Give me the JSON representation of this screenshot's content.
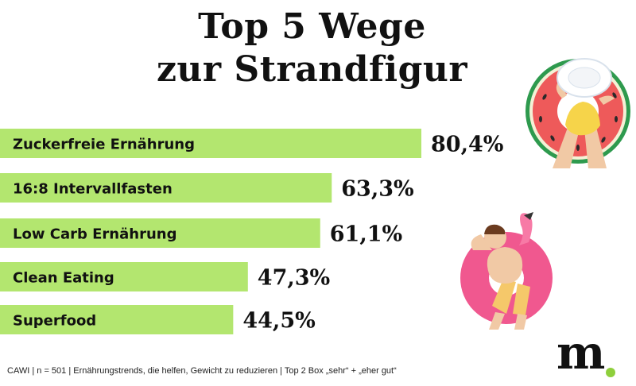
{
  "title_line1": "Top 5 Wege",
  "title_line2": "zur Strandfigur",
  "chart_data": {
    "type": "bar",
    "orientation": "horizontal",
    "categories": [
      "Zuckerfreie Ernährung",
      "16:8 Intervallfasten",
      "Low Carb Ernährung",
      "Clean Eating",
      "Superfood"
    ],
    "values": [
      80.4,
      63.3,
      61.1,
      47.3,
      44.5
    ],
    "value_labels": [
      "80,4%",
      "63,3%",
      "61,1%",
      "47,3%",
      "44,5%"
    ],
    "unit": "%",
    "bar_color": "#b3e66f",
    "grid": false,
    "legend": "none"
  },
  "footnote": "CAWI | n = 501 | Ernährungstrends, die helfen, Gewicht zu reduzieren  | Top 2 Box „sehr“ + „eher gut“",
  "logo": {
    "text": "m",
    "dot_color": "#8ecf3c"
  },
  "illustrations": [
    "woman-in-watermelon-float-icon",
    "man-on-flamingo-float-icon"
  ]
}
